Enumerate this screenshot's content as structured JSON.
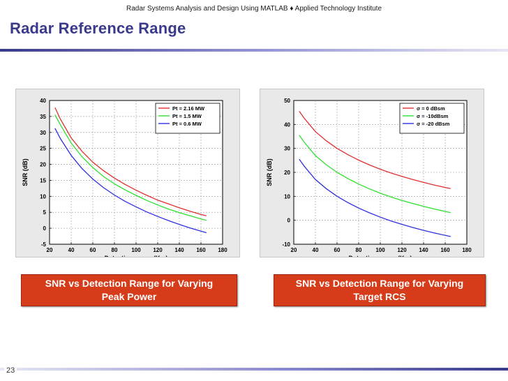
{
  "header": {
    "text": "Radar Systems Analysis and Design Using MATLAB ♦ Applied Technology Institute"
  },
  "title": "Radar Reference Range",
  "page_number": "23",
  "captions": [
    {
      "line1": "SNR vs Detection Range for Varying",
      "line2": "Peak Power"
    },
    {
      "line1": "SNR vs Detection Range for Varying",
      "line2": "Target RCS"
    }
  ],
  "colors": {
    "red": "#e03030",
    "green": "#30e030",
    "blue": "#3030e0"
  },
  "chart_data": [
    {
      "type": "line",
      "xlabel": "Detection range (Km)",
      "ylabel": "SNR (dB)",
      "xlim": [
        20,
        180
      ],
      "ylim": [
        -5,
        40
      ],
      "xticks": [
        20,
        40,
        60,
        80,
        100,
        120,
        140,
        160,
        180
      ],
      "yticks": [
        -5,
        0,
        5,
        10,
        15,
        20,
        25,
        30,
        35,
        40
      ],
      "grid": true,
      "legend_position": "top-right",
      "series": [
        {
          "name": "Pt = 2.16 MW",
          "color": "#e03030",
          "x": [
            25,
            30,
            40,
            50,
            60,
            70,
            80,
            90,
            100,
            110,
            120,
            130,
            140,
            150,
            160,
            165
          ],
          "y": [
            37.8,
            34.2,
            28.3,
            24.1,
            20.7,
            18.0,
            15.7,
            13.7,
            11.9,
            10.3,
            8.8,
            7.6,
            6.4,
            5.3,
            4.3,
            3.9
          ]
        },
        {
          "name": "Pt = 1.5 MW",
          "color": "#30e030",
          "x": [
            25,
            30,
            40,
            50,
            60,
            70,
            80,
            90,
            100,
            110,
            120,
            130,
            140,
            150,
            160,
            165
          ],
          "y": [
            35.5,
            32.4,
            26.7,
            22.4,
            19.0,
            16.2,
            13.9,
            12.0,
            10.3,
            8.7,
            7.3,
            6.0,
            4.9,
            3.9,
            2.9,
            2.5
          ]
        },
        {
          "name": "Pt = 0.6 MW",
          "color": "#3030e0",
          "x": [
            25,
            30,
            40,
            50,
            60,
            70,
            80,
            90,
            100,
            110,
            120,
            130,
            140,
            150,
            160,
            165
          ],
          "y": [
            31.3,
            28.1,
            22.8,
            18.7,
            15.4,
            12.7,
            10.4,
            8.4,
            6.7,
            5.1,
            3.7,
            2.4,
            1.2,
            0.1,
            -0.9,
            -1.4
          ]
        }
      ]
    },
    {
      "type": "line",
      "xlabel": "Detection range (Km)",
      "ylabel": "SNR (dB)",
      "xlim": [
        20,
        180
      ],
      "ylim": [
        -10,
        50
      ],
      "xticks": [
        20,
        40,
        60,
        80,
        100,
        120,
        140,
        160,
        180
      ],
      "yticks": [
        -10,
        0,
        10,
        20,
        30,
        40,
        50
      ],
      "grid": true,
      "legend_position": "top-right",
      "series": [
        {
          "name": "σ = 0 dBsm",
          "color": "#e03030",
          "x": [
            25,
            30,
            40,
            50,
            60,
            70,
            80,
            90,
            100,
            110,
            120,
            130,
            140,
            150,
            160,
            165
          ],
          "y": [
            45.5,
            42.4,
            37.0,
            33.2,
            30.0,
            27.4,
            25.1,
            23.1,
            21.3,
            19.7,
            18.3,
            17.0,
            15.8,
            14.7,
            13.7,
            13.2
          ]
        },
        {
          "name": "σ = -10dBsm",
          "color": "#30e030",
          "x": [
            25,
            30,
            40,
            50,
            60,
            70,
            80,
            90,
            100,
            110,
            120,
            130,
            140,
            150,
            160,
            165
          ],
          "y": [
            35.5,
            32.4,
            27.0,
            23.2,
            20.0,
            17.4,
            15.1,
            13.1,
            11.3,
            9.7,
            8.3,
            7.0,
            5.8,
            4.7,
            3.7,
            3.2
          ]
        },
        {
          "name": "σ = -20 dBsm",
          "color": "#3030e0",
          "x": [
            25,
            30,
            40,
            50,
            60,
            70,
            80,
            90,
            100,
            110,
            120,
            130,
            140,
            150,
            160,
            165
          ],
          "y": [
            25.5,
            22.4,
            17.0,
            13.2,
            10.0,
            7.4,
            5.1,
            3.1,
            1.3,
            -0.3,
            -1.7,
            -3.0,
            -4.2,
            -5.3,
            -6.3,
            -6.8
          ]
        }
      ]
    }
  ]
}
